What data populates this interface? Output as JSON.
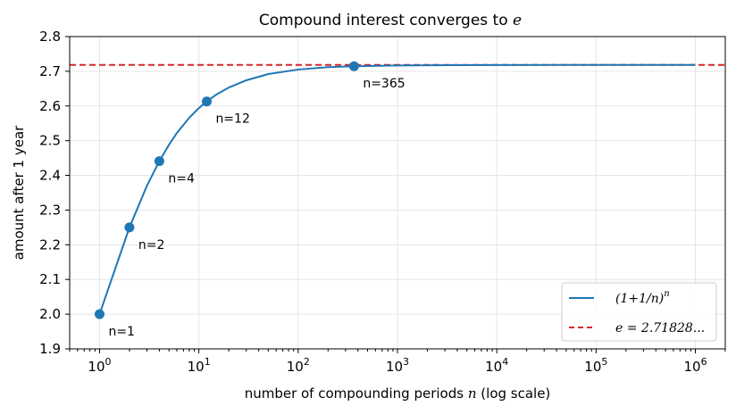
{
  "chart_data": {
    "type": "line",
    "title": "Compound interest converges to",
    "title_symbol": "e",
    "xlabel": "number of compounding periods",
    "xlabel_symbol": "n",
    "xlabel_suffix": "(log scale)",
    "ylabel": "amount after 1 year",
    "x_scale": "log",
    "xlim": [
      0.5,
      2000000
    ],
    "ylim": [
      1.9,
      2.8
    ],
    "x_ticks": [
      {
        "base": "10",
        "exp": "0",
        "value": 1
      },
      {
        "base": "10",
        "exp": "1",
        "value": 10
      },
      {
        "base": "10",
        "exp": "2",
        "value": 100
      },
      {
        "base": "10",
        "exp": "3",
        "value": 1000
      },
      {
        "base": "10",
        "exp": "4",
        "value": 10000
      },
      {
        "base": "10",
        "exp": "5",
        "value": 100000
      },
      {
        "base": "10",
        "exp": "6",
        "value": 1000000
      }
    ],
    "y_ticks": [
      "1.9",
      "2.0",
      "2.1",
      "2.2",
      "2.3",
      "2.4",
      "2.5",
      "2.6",
      "2.7",
      "2.8"
    ],
    "grid": true,
    "legend_position": "bottom-right",
    "series": [
      {
        "name": "(1+1/n)^n",
        "color": "#1f77b4",
        "style": "solid",
        "x": [
          1,
          2,
          3,
          4,
          5,
          6,
          8,
          10,
          12,
          15,
          20,
          30,
          50,
          100,
          200,
          365,
          1000,
          10000,
          100000,
          1000000
        ],
        "y": [
          2.0,
          2.25,
          2.37,
          2.441,
          2.488,
          2.522,
          2.566,
          2.594,
          2.613,
          2.633,
          2.653,
          2.674,
          2.692,
          2.705,
          2.712,
          2.7146,
          2.7169,
          2.7181,
          2.7183,
          2.7183
        ]
      },
      {
        "name": "e = 2.71828...",
        "color": "#d62728",
        "style": "dashed",
        "y_const": 2.71828
      }
    ],
    "markers": [
      {
        "label": "n=1",
        "x": 1,
        "y": 2.0
      },
      {
        "label": "n=2",
        "x": 2,
        "y": 2.25
      },
      {
        "label": "n=4",
        "x": 4,
        "y": 2.441
      },
      {
        "label": "n=12",
        "x": 12,
        "y": 2.613
      },
      {
        "label": "n=365",
        "x": 365,
        "y": 2.7146
      }
    ],
    "legend": [
      {
        "label": "(1+1/n)",
        "sup": "n",
        "color": "#1f77b4",
        "style": "solid"
      },
      {
        "label": "e = 2.71828...",
        "color": "#d62728",
        "style": "dashed"
      }
    ]
  }
}
